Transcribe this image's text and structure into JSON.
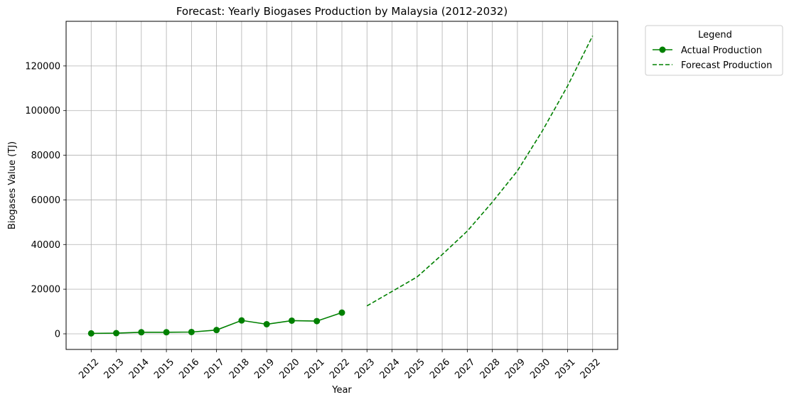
{
  "chart_data": {
    "type": "line",
    "title": "Forecast: Yearly Biogases Production by Malaysia (2012-2032)",
    "xlabel": "Year",
    "ylabel": "Biogases Value (TJ)",
    "x_ticks": [
      "2012",
      "2013",
      "2014",
      "2015",
      "2016",
      "2017",
      "2018",
      "2019",
      "2020",
      "2021",
      "2022",
      "2023",
      "2024",
      "2025",
      "2026",
      "2027",
      "2028",
      "2029",
      "2030",
      "2031",
      "2032"
    ],
    "xlim": [
      2011,
      2033
    ],
    "ylim": [
      -7000,
      140000
    ],
    "y_ticks": [
      0,
      20000,
      40000,
      60000,
      80000,
      100000,
      120000
    ],
    "grid": true,
    "legend": {
      "title": "Legend",
      "placement": "outside top-right"
    },
    "series": [
      {
        "name": "Actual Production",
        "style": "solid-marker",
        "color": "#008000",
        "x": [
          2012,
          2013,
          2014,
          2015,
          2016,
          2017,
          2018,
          2019,
          2020,
          2021,
          2022
        ],
        "y": [
          200,
          300,
          700,
          700,
          800,
          1700,
          6000,
          4300,
          5900,
          5700,
          9500
        ]
      },
      {
        "name": "Forecast Production",
        "style": "dashed",
        "color": "#008000",
        "x": [
          2023,
          2024,
          2025,
          2026,
          2027,
          2028,
          2029,
          2030,
          2031,
          2032
        ],
        "y": [
          12500,
          19000,
          25500,
          35500,
          46000,
          59000,
          73000,
          91000,
          111000,
          133500
        ]
      }
    ]
  }
}
